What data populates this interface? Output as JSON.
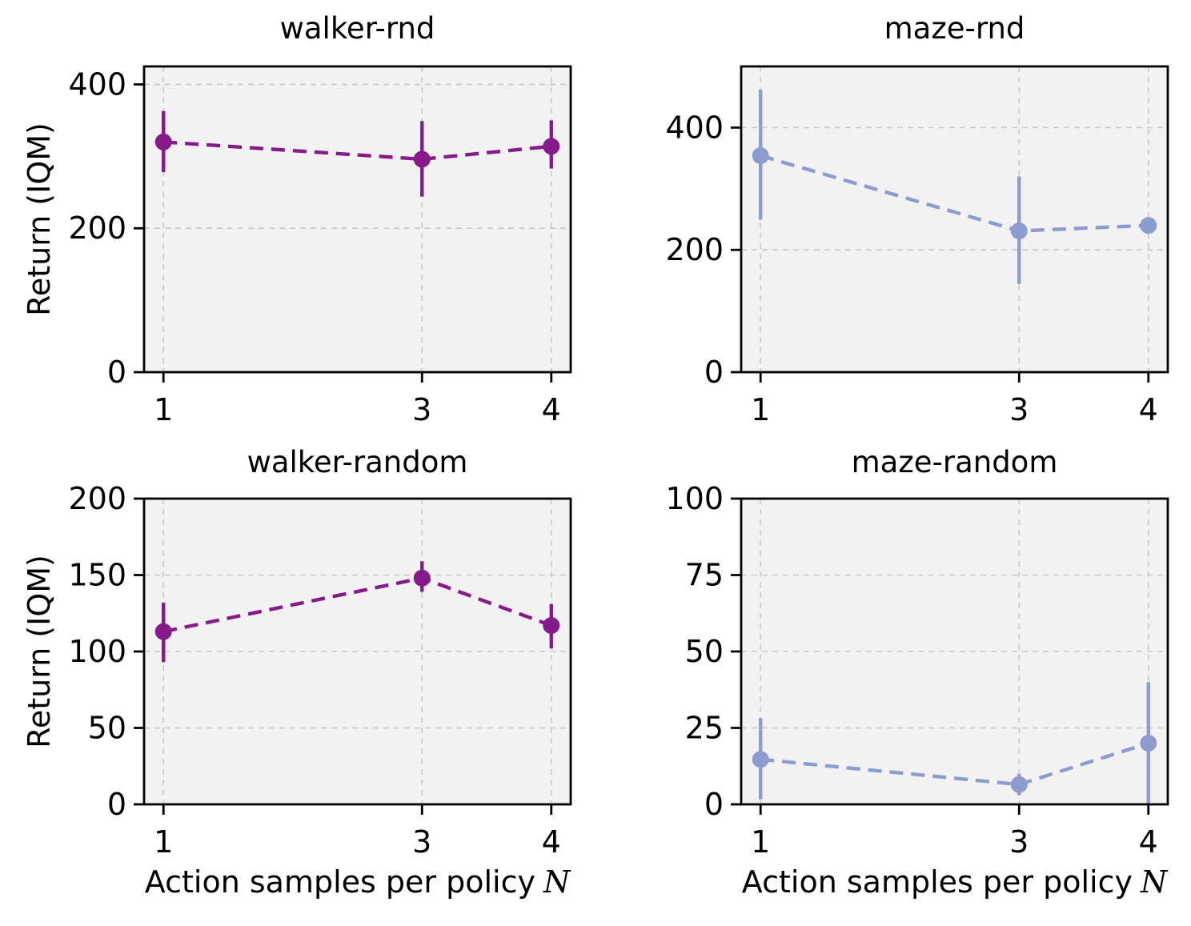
{
  "figure": {
    "background": "#ffffff",
    "axes_facecolor": "#f2f2f2",
    "grid_color": "#c9c9c9",
    "spine_color": "#000000",
    "text_color": "#000000",
    "ylabel": "Return (IQM)",
    "xlabel_text": "Action samples per policy",
    "xlabel_math": "N"
  },
  "chart_data": [
    {
      "type": "line",
      "title": "walker-rnd",
      "color": "#861A8B",
      "line_style": "dashed",
      "marker": "circle",
      "x": [
        1,
        3,
        4
      ],
      "y": [
        320,
        296,
        314
      ],
      "err_low": [
        278,
        244,
        283
      ],
      "err_high": [
        363,
        349,
        350
      ],
      "xticks": [
        1,
        3,
        4
      ],
      "yticks": [
        0,
        200,
        400
      ],
      "xlim": [
        0.85,
        4.15
      ],
      "ylim": [
        0,
        425
      ],
      "grid": true,
      "show_ylabel": true,
      "show_xlabel": false
    },
    {
      "type": "line",
      "title": "maze-rnd",
      "color": "#8C9CCF",
      "line_style": "dashed",
      "marker": "circle",
      "x": [
        1,
        3,
        4
      ],
      "y": [
        354,
        231,
        240
      ],
      "err_low": [
        249,
        144,
        230
      ],
      "err_high": [
        462,
        320,
        251
      ],
      "xticks": [
        1,
        3,
        4
      ],
      "yticks": [
        0,
        200,
        400
      ],
      "xlim": [
        0.85,
        4.15
      ],
      "ylim": [
        0,
        500
      ],
      "grid": true,
      "show_ylabel": false,
      "show_xlabel": false
    },
    {
      "type": "line",
      "title": "walker-random",
      "color": "#861A8B",
      "line_style": "dashed",
      "marker": "circle",
      "x": [
        1,
        3,
        4
      ],
      "y": [
        113,
        148,
        117
      ],
      "err_low": [
        93,
        139,
        102
      ],
      "err_high": [
        132,
        159,
        131
      ],
      "xticks": [
        1,
        3,
        4
      ],
      "yticks": [
        0,
        50,
        100,
        150,
        200
      ],
      "xlim": [
        0.85,
        4.15
      ],
      "ylim": [
        0,
        200
      ],
      "grid": true,
      "show_ylabel": true,
      "show_xlabel": true
    },
    {
      "type": "line",
      "title": "maze-random",
      "color": "#8C9CCF",
      "line_style": "dashed",
      "marker": "circle",
      "x": [
        1,
        3,
        4
      ],
      "y": [
        14.7,
        6.5,
        20
      ],
      "err_low": [
        1.6,
        3,
        0
      ],
      "err_high": [
        28.2,
        10,
        40
      ],
      "xticks": [
        1,
        3,
        4
      ],
      "yticks": [
        0,
        25,
        50,
        75,
        100
      ],
      "xlim": [
        0.85,
        4.15
      ],
      "ylim": [
        0,
        100
      ],
      "grid": true,
      "show_ylabel": false,
      "show_xlabel": true
    }
  ]
}
